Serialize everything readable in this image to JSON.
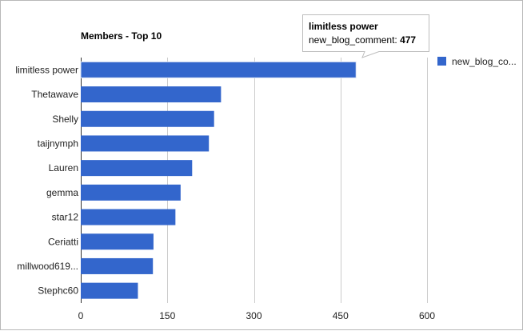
{
  "chart_data": {
    "type": "bar",
    "orientation": "horizontal",
    "title": "Members - Top 10",
    "xlabel": "",
    "ylabel": "",
    "categories": [
      "limitless power",
      "Thetawave",
      "Shelly",
      "taijnymph",
      "Lauren",
      "gemma",
      "star12",
      "Ceriatti",
      "millwood619...",
      "Stephc60"
    ],
    "series": [
      {
        "name": "new_blog_comment",
        "color": "#3366cc",
        "values": [
          477,
          243,
          231,
          222,
          193,
          173,
          164,
          126,
          125,
          99
        ]
      }
    ],
    "xlim": [
      0,
      600
    ],
    "xticks": [
      0,
      150,
      300,
      450,
      600
    ],
    "grid": true,
    "legend": {
      "position": "right",
      "label": "new_blog_co..."
    },
    "tooltip": {
      "title": "limitless power",
      "series_label": "new_blog_comment:",
      "value": "477"
    }
  }
}
